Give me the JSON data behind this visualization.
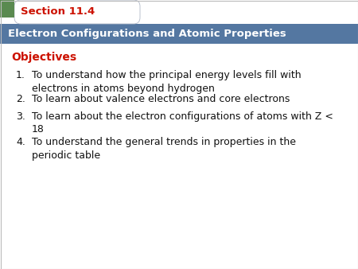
{
  "section_label": "Section 11.4",
  "title": "Electron Configurations and Atomic Properties",
  "objectives_label": "Objectives",
  "items": [
    "To understand how the principal energy levels fill with\nelectrons in atoms beyond hydrogen",
    "To learn about valence electrons and core electrons",
    "To learn about the electron configurations of atoms with Z <\n18",
    "To understand the general trends in properties in the\nperiodic table"
  ],
  "header_bg_color": "#5477a1",
  "header_text_color": "#ffffff",
  "section_tab_bg": "#ffffff",
  "section_tab_border": "#b0b8c8",
  "section_label_color": "#cc1100",
  "objectives_color": "#cc1100",
  "body_text_color": "#111111",
  "green_bar_color": "#5a8a50",
  "bg_color": "#ffffff",
  "title_fontsize": 9.5,
  "section_fontsize": 9.5,
  "objectives_fontsize": 10,
  "item_fontsize": 9
}
